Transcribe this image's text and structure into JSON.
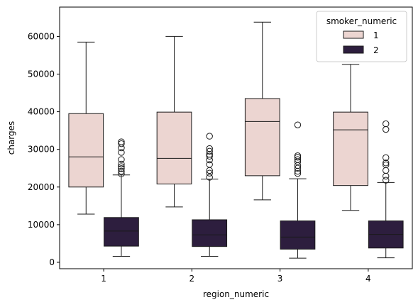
{
  "chart_data": {
    "type": "boxplot",
    "title": "",
    "xlabel": "region_numeric",
    "ylabel": "charges",
    "categories": [
      "1",
      "2",
      "3",
      "4"
    ],
    "ylim": [
      -1700,
      67800
    ],
    "yticks": [
      0,
      10000,
      20000,
      30000,
      40000,
      50000,
      60000
    ],
    "grid": false,
    "legend": {
      "title": "smoker_numeric",
      "placement": "top-right",
      "entries": [
        "1",
        "2"
      ]
    },
    "series": [
      {
        "name": "1",
        "color": "#ecd5d1",
        "boxes": [
          {
            "whisker_low": 12800,
            "q1": 20000,
            "median": 28000,
            "q3": 39500,
            "whisker_high": 58500,
            "outliers": []
          },
          {
            "whisker_low": 14700,
            "q1": 20800,
            "median": 27600,
            "q3": 39900,
            "whisker_high": 60000,
            "outliers": []
          },
          {
            "whisker_low": 16600,
            "q1": 23000,
            "median": 37400,
            "q3": 43500,
            "whisker_high": 63800,
            "outliers": []
          },
          {
            "whisker_low": 13800,
            "q1": 20400,
            "median": 35200,
            "q3": 39900,
            "whisker_high": 52600,
            "outliers": []
          }
        ]
      },
      {
        "name": "2",
        "color": "#2d1e3e",
        "boxes": [
          {
            "whisker_low": 1600,
            "q1": 4300,
            "median": 8300,
            "q3": 11900,
            "whisker_high": 23200,
            "outliers": [
              23500,
              24200,
              24900,
              25400,
              26100,
              27300,
              29200,
              30400,
              31500,
              32000
            ]
          },
          {
            "whisker_low": 1600,
            "q1": 4200,
            "median": 7300,
            "q3": 11300,
            "whisker_high": 22100,
            "outliers": [
              22600,
              23700,
              24400,
              26000,
              27200,
              28200,
              28700,
              29500,
              30200,
              33500
            ]
          },
          {
            "whisker_low": 1100,
            "q1": 3500,
            "median": 6700,
            "q3": 11000,
            "whisker_high": 22200,
            "outliers": [
              23600,
              24200,
              25000,
              25700,
              26700,
              27300,
              27900,
              28300,
              36500
            ]
          },
          {
            "whisker_low": 1200,
            "q1": 3800,
            "median": 7400,
            "q3": 11000,
            "whisker_high": 21200,
            "outliers": [
              21800,
              22900,
              24400,
              25900,
              26400,
              27800,
              35300,
              36800
            ]
          }
        ]
      }
    ]
  }
}
